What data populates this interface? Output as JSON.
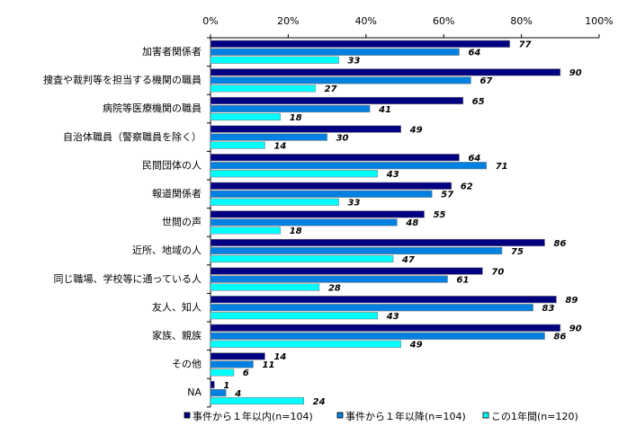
{
  "chart_data": {
    "type": "bar",
    "orientation": "horizontal",
    "title": "",
    "xlabel": "",
    "ylabel": "",
    "xlim": [
      0,
      100
    ],
    "x_ticks": [
      "0%",
      "20%",
      "40%",
      "60%",
      "80%",
      "100%"
    ],
    "x_tick_values": [
      0,
      20,
      40,
      60,
      80,
      100
    ],
    "grid": false,
    "legend_position": "bottom",
    "categories": [
      "加害者関係者",
      "捜査や裁判等を担当する機関の職員",
      "病院等医療機関の職員",
      "自治体職員（警察職員を除く）",
      "民間団体の人",
      "報道関係者",
      "世間の声",
      "近所、地域の人",
      "同じ職場、学校等に通っている人",
      "友人、知人",
      "家族、親族",
      "その他",
      "NA"
    ],
    "series": [
      {
        "name": "事件から１年以内(n=104)",
        "color": "#000080",
        "values": [
          77,
          90,
          65,
          49,
          64,
          62,
          55,
          86,
          70,
          89,
          90,
          14,
          1
        ]
      },
      {
        "name": "事件から１年以降(n=104)",
        "color": "#0080e0",
        "values": [
          64,
          67,
          41,
          30,
          71,
          57,
          48,
          75,
          61,
          83,
          86,
          11,
          4
        ]
      },
      {
        "name": "この1年間(n=120)",
        "color": "#00ffff",
        "values": [
          33,
          27,
          18,
          14,
          43,
          33,
          18,
          47,
          28,
          43,
          49,
          6,
          24
        ]
      }
    ]
  }
}
